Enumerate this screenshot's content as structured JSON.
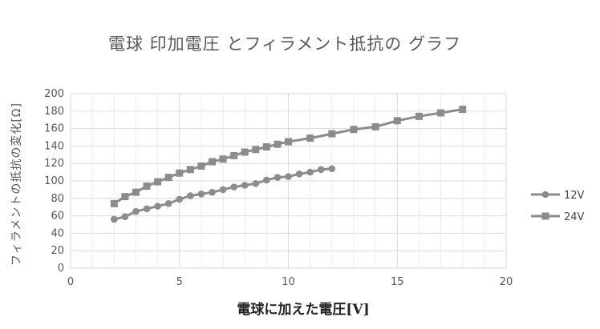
{
  "chart_data": {
    "type": "line",
    "title": "電球 印加電圧 とフィラメント抵抗の グラフ",
    "xlabel": "電球に加えた電圧[V]",
    "ylabel": "フィラメントの抵抗の変化[Ω]",
    "xlim": [
      0,
      20
    ],
    "ylim": [
      0,
      200
    ],
    "xticks": [
      0,
      5,
      10,
      15,
      20
    ],
    "yticks": [
      0,
      20,
      40,
      60,
      80,
      100,
      120,
      140,
      160,
      180,
      200
    ],
    "grid": true,
    "legend_position": "right",
    "series": [
      {
        "name": "12V",
        "marker": "circle",
        "color": "#8c8c8c",
        "x": [
          2,
          2.5,
          3,
          3.5,
          4,
          4.5,
          5,
          5.5,
          6,
          6.5,
          7,
          7.5,
          8,
          8.5,
          9,
          9.5,
          10,
          10.5,
          11,
          11.5,
          12
        ],
        "y": [
          56,
          59,
          65,
          68,
          71,
          74,
          79,
          83,
          85,
          87,
          90,
          93,
          95,
          97,
          101,
          104,
          105,
          108,
          110,
          113,
          114
        ]
      },
      {
        "name": "24V",
        "marker": "square",
        "color": "#8c8c8c",
        "x": [
          2,
          2.5,
          3,
          3.5,
          4,
          4.5,
          5,
          5.5,
          6,
          6.5,
          7,
          7.5,
          8,
          8.5,
          9,
          9.5,
          10,
          11,
          12,
          13,
          14,
          15,
          16,
          17,
          18
        ],
        "y": [
          74,
          82,
          87,
          94,
          99,
          104,
          109,
          113,
          117,
          122,
          125,
          129,
          133,
          136,
          139,
          142,
          145,
          149,
          154,
          159,
          162,
          169,
          174,
          178,
          182
        ]
      }
    ]
  }
}
